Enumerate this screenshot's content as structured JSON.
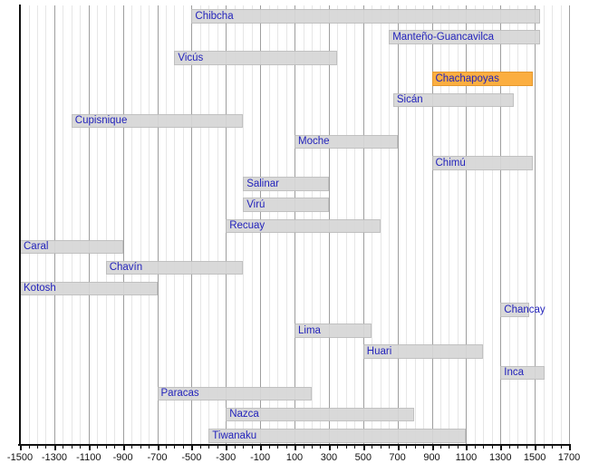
{
  "chart_data": {
    "type": "bar",
    "subtype": "timeline-gantt",
    "title": "",
    "xlabel": "",
    "ylabel": "",
    "grid": "vertical",
    "legend_position": "none",
    "axis": {
      "min": -1500,
      "max": 1700,
      "major_step": 200,
      "minor_step": 50,
      "tick_labels": [
        "-1500",
        "-1300",
        "-1100",
        "-900",
        "-700",
        "-500",
        "-300",
        "-100",
        "100",
        "300",
        "500",
        "700",
        "900",
        "1100",
        "1300",
        "1500",
        "1700"
      ]
    },
    "cultures": [
      {
        "name": "Chibcha",
        "from": -500,
        "till": 1530,
        "highlight": false
      },
      {
        "name": "Manteño-Guancavilca",
        "from": 650,
        "till": 1530,
        "highlight": false
      },
      {
        "name": "Vicús",
        "from": -600,
        "till": 350,
        "highlight": false
      },
      {
        "name": "Chachapoyas",
        "from": 900,
        "till": 1490,
        "highlight": true
      },
      {
        "name": "Sicán",
        "from": 675,
        "till": 1380,
        "highlight": false
      },
      {
        "name": "Cupisnique",
        "from": -1200,
        "till": -200,
        "highlight": false
      },
      {
        "name": "Moche",
        "from": 100,
        "till": 700,
        "highlight": false
      },
      {
        "name": "Chimú",
        "from": 900,
        "till": 1490,
        "highlight": false
      },
      {
        "name": "Salinar",
        "from": -200,
        "till": 300,
        "highlight": false
      },
      {
        "name": "Virú",
        "from": -200,
        "till": 300,
        "highlight": false
      },
      {
        "name": "Recuay",
        "from": -300,
        "till": 600,
        "highlight": false
      },
      {
        "name": "Caral",
        "from": -1500,
        "till": -900,
        "highlight": false
      },
      {
        "name": "Chavín",
        "from": -1000,
        "till": -200,
        "highlight": false
      },
      {
        "name": "Kotosh",
        "from": -1500,
        "till": -700,
        "highlight": false
      },
      {
        "name": "Chancay",
        "from": 1300,
        "till": 1470,
        "highlight": false
      },
      {
        "name": "Lima",
        "from": 100,
        "till": 550,
        "highlight": false
      },
      {
        "name": "Huari",
        "from": 500,
        "till": 1200,
        "highlight": false
      },
      {
        "name": "Inca",
        "from": 1300,
        "till": 1560,
        "highlight": false
      },
      {
        "name": "Paracas",
        "from": -700,
        "till": 200,
        "highlight": false
      },
      {
        "name": "Nazca",
        "from": -300,
        "till": 800,
        "highlight": false
      },
      {
        "name": "Tiwanaku",
        "from": -400,
        "till": 1100,
        "highlight": false
      }
    ]
  },
  "colors": {
    "background": "#ffffff",
    "bar_fill": "#d7d7d7",
    "highlight_fill": "#fbae40",
    "label_text": "#2323bb",
    "gridline_minor": "#e6e6e6",
    "gridline_major": "#9e9e9e",
    "axis_line": "#111111",
    "tick_text": "#111111"
  }
}
